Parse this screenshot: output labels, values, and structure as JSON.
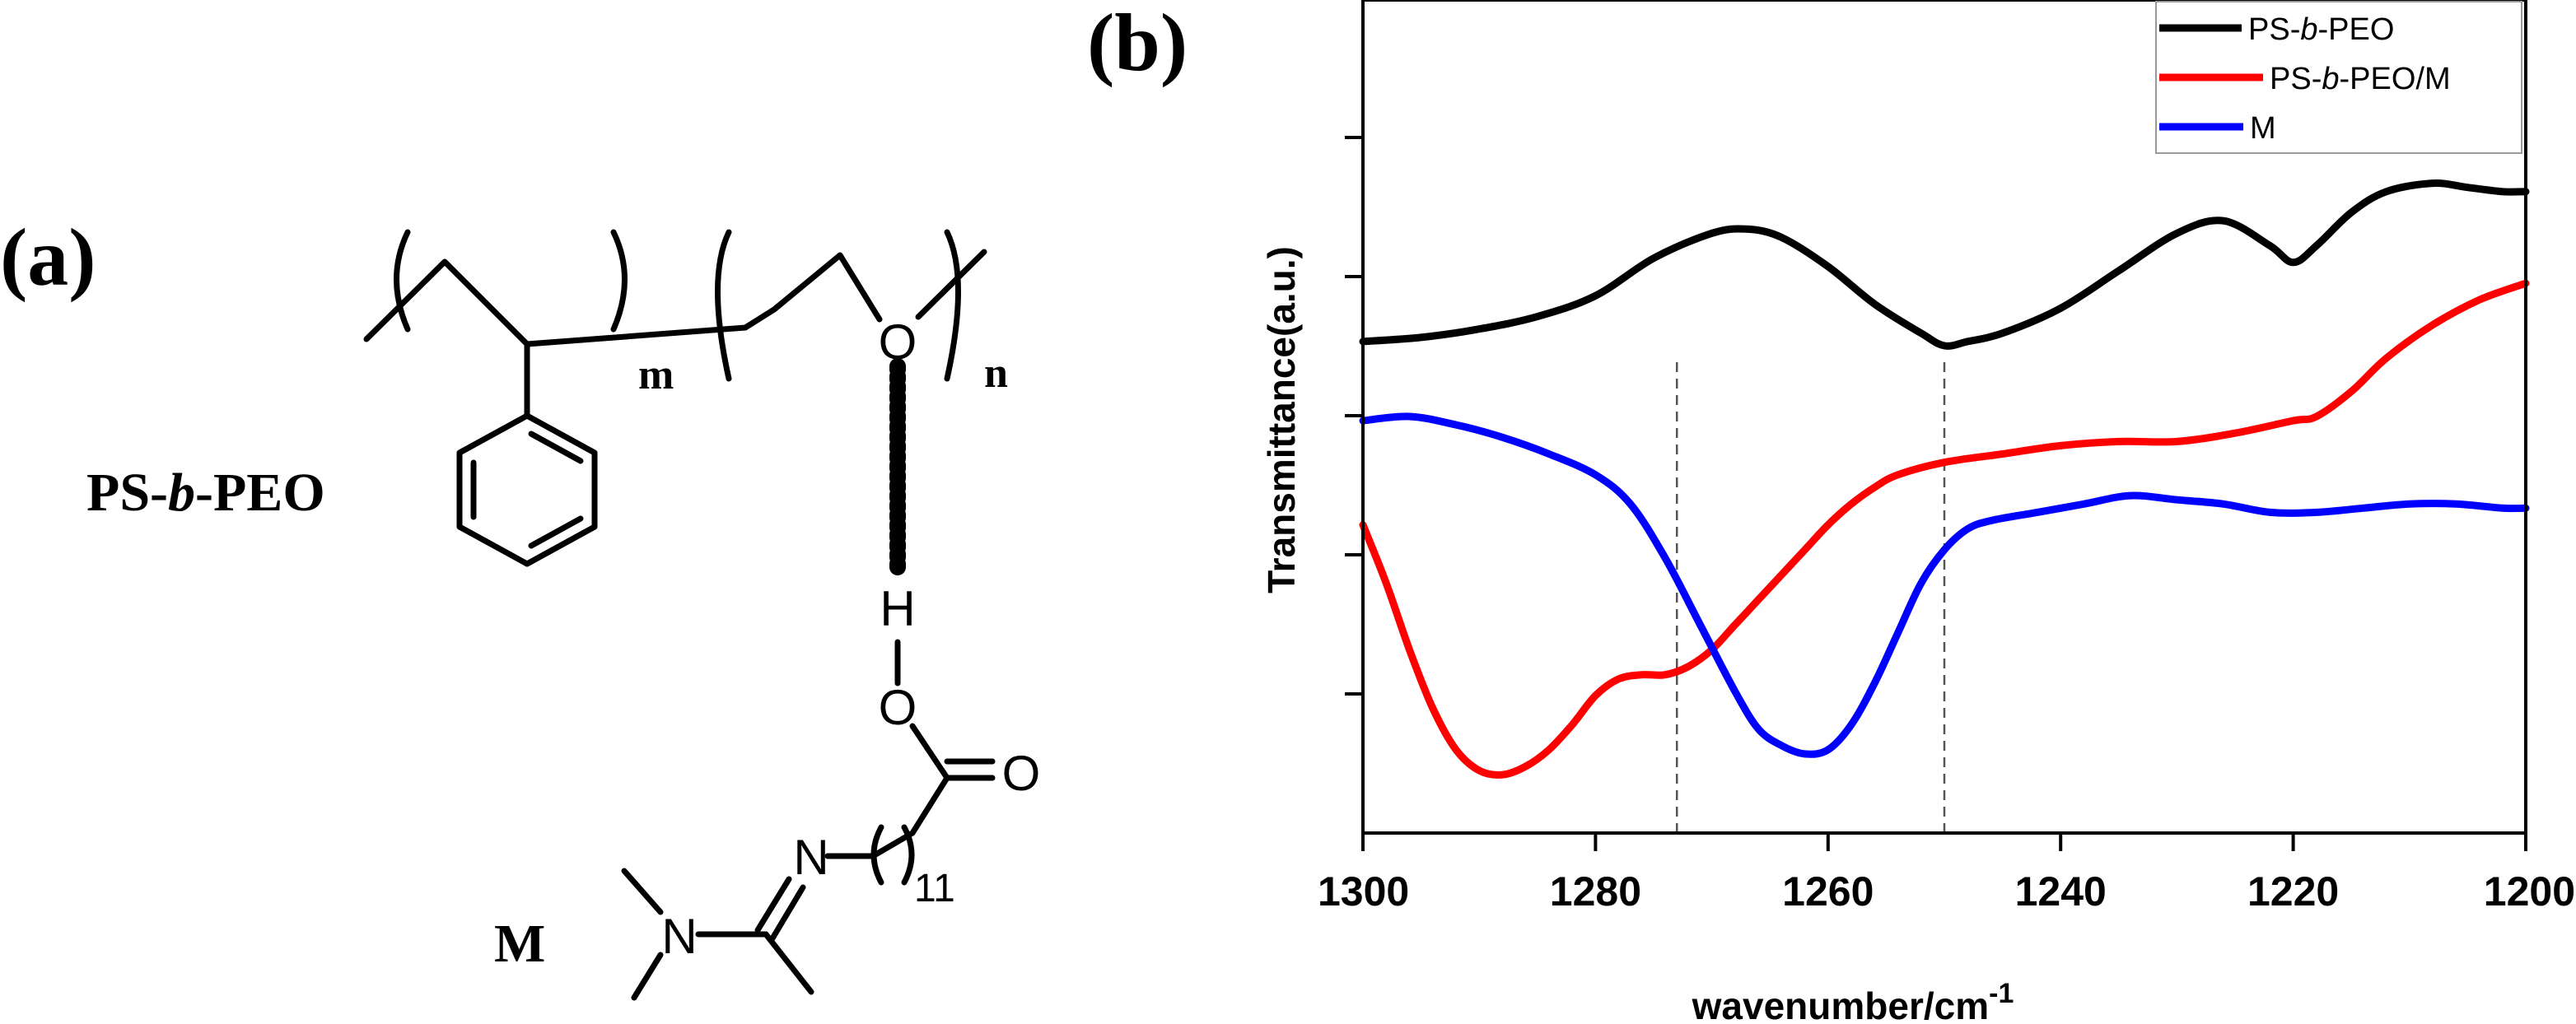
{
  "panel_a": {
    "label": "(a)",
    "polymer_name": "PS-b-PEO",
    "polymer_name_parts": [
      "PS-",
      "b",
      "-PEO"
    ],
    "subscript_m": "m",
    "subscript_n": "n",
    "atom_O_ether": "O",
    "atom_H": "H",
    "atom_O_hydroxyl": "O",
    "atom_O_carbonyl": "O",
    "atom_N_imine": "N",
    "atom_N_amine": "N",
    "repeat_count": "11",
    "molecule_name": "M"
  },
  "panel_b": {
    "label": "(b)"
  },
  "chart_data": {
    "type": "line",
    "title": "",
    "xlabel": "wavenumber/cm",
    "xlabel_superscript": "-1",
    "ylabel": "Transmittance(a.u.)",
    "xlim": [
      1300,
      1200
    ],
    "ylim": [
      0,
      1
    ],
    "x_reversed": true,
    "y_ticklabels": false,
    "xticks": [
      1300,
      1280,
      1260,
      1240,
      1220,
      1200
    ],
    "xtick_labels": [
      "1300",
      "1280",
      "1260",
      "1240",
      "1220",
      "1200"
    ],
    "grid": false,
    "legend_position": "top-right",
    "series": [
      {
        "name": "PS-b-PEO",
        "name_parts": [
          "PS-",
          "b",
          "-PEO"
        ],
        "color": "#000000",
        "x": [
          1300,
          1295,
          1290,
          1285,
          1280,
          1275,
          1270,
          1267,
          1264,
          1260,
          1256,
          1252,
          1250,
          1248,
          1245,
          1240,
          1235,
          1230,
          1226,
          1222,
          1220,
          1218,
          1215,
          1212,
          1208,
          1205,
          1202,
          1200
        ],
        "y": [
          0.59,
          0.595,
          0.605,
          0.62,
          0.645,
          0.69,
          0.72,
          0.725,
          0.715,
          0.68,
          0.635,
          0.6,
          0.585,
          0.59,
          0.6,
          0.63,
          0.675,
          0.72,
          0.735,
          0.705,
          0.685,
          0.705,
          0.745,
          0.77,
          0.78,
          0.775,
          0.77,
          0.77
        ]
      },
      {
        "name": "PS-b-PEO/M",
        "name_parts": [
          "PS-",
          "b",
          "-PEO/M"
        ],
        "color": "#ff0000",
        "x": [
          1300,
          1298,
          1296,
          1294,
          1292,
          1290,
          1288,
          1286,
          1284,
          1282,
          1280,
          1278,
          1276,
          1274,
          1272,
          1270,
          1268,
          1266,
          1264,
          1262,
          1260,
          1258,
          1256,
          1254,
          1250,
          1245,
          1240,
          1235,
          1230,
          1225,
          1220,
          1218,
          1215,
          1212,
          1208,
          1204,
          1200
        ],
        "y": [
          0.37,
          0.3,
          0.22,
          0.15,
          0.1,
          0.075,
          0.07,
          0.08,
          0.1,
          0.13,
          0.165,
          0.185,
          0.19,
          0.19,
          0.2,
          0.22,
          0.25,
          0.28,
          0.31,
          0.34,
          0.37,
          0.395,
          0.415,
          0.43,
          0.445,
          0.455,
          0.465,
          0.47,
          0.47,
          0.48,
          0.495,
          0.5,
          0.53,
          0.57,
          0.61,
          0.64,
          0.66
        ]
      },
      {
        "name": "M",
        "name_parts": [
          "M"
        ],
        "color": "#0000ff",
        "x": [
          1300,
          1296,
          1292,
          1288,
          1284,
          1280,
          1277,
          1274,
          1271,
          1268,
          1266,
          1264,
          1262,
          1260,
          1258,
          1256,
          1254,
          1252,
          1250,
          1248,
          1246,
          1242,
          1238,
          1234,
          1230,
          1226,
          1222,
          1218,
          1214,
          1210,
          1206,
          1202,
          1200
        ],
        "y": [
          0.495,
          0.5,
          0.49,
          0.475,
          0.455,
          0.43,
          0.395,
          0.33,
          0.25,
          0.17,
          0.125,
          0.105,
          0.095,
          0.1,
          0.13,
          0.18,
          0.24,
          0.3,
          0.34,
          0.365,
          0.375,
          0.385,
          0.395,
          0.405,
          0.4,
          0.395,
          0.385,
          0.385,
          0.39,
          0.395,
          0.395,
          0.39,
          0.39
        ]
      }
    ],
    "reference_lines": [
      {
        "x": 1273,
        "style": "dashed"
      },
      {
        "x": 1250,
        "style": "dashed"
      }
    ]
  }
}
